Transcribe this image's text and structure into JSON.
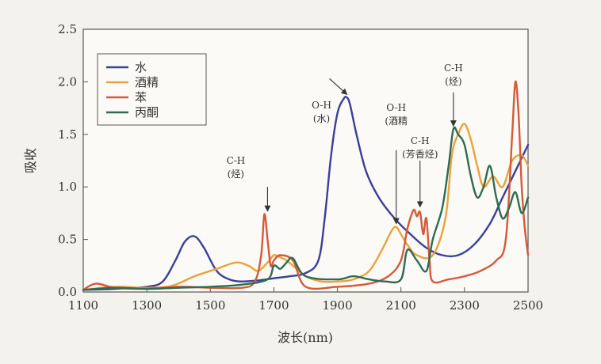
{
  "chart_data": {
    "type": "line",
    "title": "",
    "xlabel": "波长(nm)",
    "ylabel": "吸收",
    "xlim": [
      1100,
      2500
    ],
    "ylim": [
      0,
      2.5
    ],
    "xticks": [
      1100,
      1300,
      1500,
      1700,
      1900,
      2100,
      2300,
      2500
    ],
    "yticks": [
      0.0,
      0.5,
      1.0,
      1.5,
      2.0,
      2.5
    ],
    "xtick_labels": [
      "1100",
      "1300",
      "1500",
      "1700",
      "1900",
      "2100",
      "2300",
      "2500"
    ],
    "ytick_labels": [
      "0.0",
      "0.5",
      "1.0",
      "1.5",
      "2.0",
      "2.5"
    ],
    "grid": false,
    "legend_position": "top-left",
    "series": [
      {
        "name": "水",
        "color": "#3b3f9a",
        "x": [
          1100,
          1200,
          1300,
          1350,
          1390,
          1420,
          1450,
          1480,
          1520,
          1560,
          1600,
          1650,
          1700,
          1750,
          1800,
          1840,
          1860,
          1880,
          1900,
          1920,
          1930,
          1940,
          1960,
          1990,
          2030,
          2080,
          2130,
          2180,
          2230,
          2280,
          2330,
          2380,
          2420,
          2460,
          2500
        ],
        "y": [
          0.02,
          0.03,
          0.05,
          0.1,
          0.3,
          0.48,
          0.53,
          0.42,
          0.2,
          0.12,
          0.1,
          0.11,
          0.13,
          0.15,
          0.18,
          0.3,
          0.7,
          1.3,
          1.7,
          1.84,
          1.85,
          1.78,
          1.5,
          1.15,
          0.9,
          0.7,
          0.55,
          0.42,
          0.35,
          0.35,
          0.45,
          0.65,
          0.9,
          1.15,
          1.4
        ]
      },
      {
        "name": "酒精",
        "color": "#e9a33a",
        "x": [
          1100,
          1200,
          1300,
          1380,
          1450,
          1520,
          1580,
          1620,
          1650,
          1680,
          1700,
          1720,
          1740,
          1760,
          1800,
          1850,
          1900,
          1950,
          2000,
          2040,
          2070,
          2085,
          2100,
          2120,
          2150,
          2200,
          2240,
          2260,
          2280,
          2300,
          2320,
          2340,
          2360,
          2390,
          2420,
          2450,
          2480,
          2500
        ],
        "y": [
          0.02,
          0.05,
          0.04,
          0.06,
          0.15,
          0.22,
          0.28,
          0.25,
          0.2,
          0.28,
          0.35,
          0.33,
          0.3,
          0.25,
          0.15,
          0.1,
          0.1,
          0.12,
          0.2,
          0.4,
          0.58,
          0.62,
          0.55,
          0.45,
          0.35,
          0.35,
          0.7,
          1.3,
          1.5,
          1.6,
          1.45,
          1.2,
          1.0,
          1.1,
          1.0,
          1.25,
          1.3,
          1.2
        ]
      },
      {
        "name": "苯",
        "color": "#d45a38",
        "x": [
          1100,
          1140,
          1200,
          1300,
          1400,
          1500,
          1600,
          1640,
          1660,
          1670,
          1680,
          1690,
          1700,
          1720,
          1760,
          1800,
          1900,
          2000,
          2060,
          2100,
          2120,
          2140,
          2150,
          2160,
          2170,
          2180,
          2190,
          2200,
          2250,
          2300,
          2350,
          2400,
          2430,
          2450,
          2460,
          2470,
          2480,
          2490,
          2500
        ],
        "y": [
          0.02,
          0.08,
          0.04,
          0.03,
          0.05,
          0.04,
          0.04,
          0.1,
          0.35,
          0.74,
          0.5,
          0.25,
          0.3,
          0.35,
          0.3,
          0.05,
          0.05,
          0.08,
          0.15,
          0.3,
          0.6,
          0.78,
          0.72,
          0.76,
          0.55,
          0.7,
          0.3,
          0.1,
          0.12,
          0.15,
          0.2,
          0.3,
          0.5,
          1.5,
          2.0,
          1.7,
          1.0,
          0.6,
          0.35
        ]
      },
      {
        "name": "丙酮",
        "color": "#2f6b52",
        "x": [
          1100,
          1200,
          1300,
          1400,
          1500,
          1600,
          1680,
          1700,
          1720,
          1740,
          1760,
          1800,
          1900,
          1950,
          2000,
          2050,
          2100,
          2120,
          2150,
          2180,
          2200,
          2230,
          2250,
          2265,
          2280,
          2300,
          2320,
          2340,
          2360,
          2380,
          2400,
          2420,
          2440,
          2460,
          2480,
          2500
        ],
        "y": [
          0.02,
          0.04,
          0.03,
          0.04,
          0.05,
          0.07,
          0.12,
          0.25,
          0.22,
          0.28,
          0.32,
          0.15,
          0.12,
          0.15,
          0.12,
          0.1,
          0.12,
          0.4,
          0.3,
          0.2,
          0.5,
          0.8,
          1.2,
          1.55,
          1.5,
          1.4,
          1.1,
          0.9,
          1.0,
          1.2,
          0.9,
          0.7,
          0.8,
          0.95,
          0.75,
          0.9
        ]
      }
    ],
    "annotations": [
      {
        "lines": [
          "C-H",
          "(烃)"
        ],
        "x": 1680,
        "y": 0.74
      },
      {
        "lines": [
          "O-H",
          "(水)"
        ],
        "x": 1930,
        "y": 1.85
      },
      {
        "lines": [
          "O-H",
          "(酒精"
        ],
        "x": 2085,
        "y": 0.62
      },
      {
        "lines": [
          "C-H",
          "(芳香烃)"
        ],
        "x": 2160,
        "y": 0.78
      },
      {
        "lines": [
          "C-H",
          "(烃)"
        ],
        "x": 2265,
        "y": 1.55
      }
    ]
  }
}
